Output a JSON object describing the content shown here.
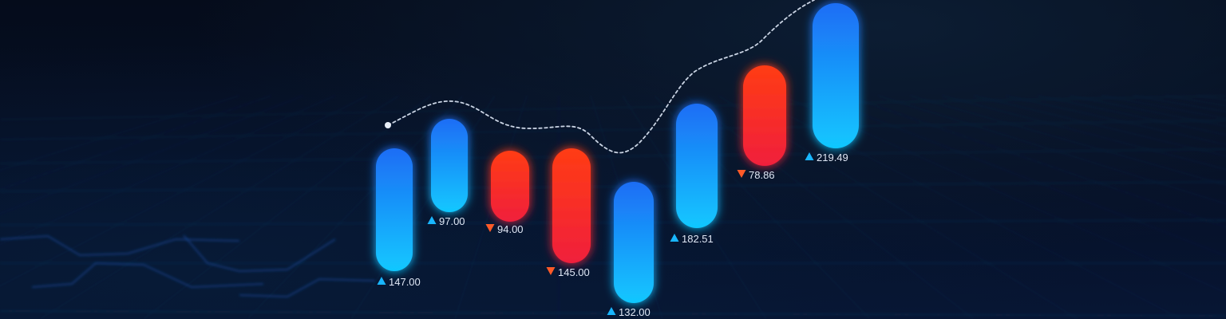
{
  "chart_data": {
    "type": "bar",
    "style": "candlestick-like rounded bars with trend line",
    "colors": {
      "up_top": "#1d6df5",
      "up_bottom": "#11c8ff",
      "down_top": "#ff3c14",
      "down_bottom": "#f01f3c",
      "up_marker": "#19b6ff",
      "down_marker": "#ff5a28",
      "trend_line": "#c9d3e3",
      "background": "#050d1d",
      "grid": "#1c3a64"
    },
    "labels": [
      "147.00",
      "97.00",
      "94.00",
      "145.00",
      "132.00",
      "182.51",
      "78.86",
      "219.49"
    ],
    "direction": [
      "up",
      "up",
      "down",
      "down",
      "up",
      "up",
      "down",
      "up"
    ],
    "grid": true,
    "legend": "none"
  }
}
